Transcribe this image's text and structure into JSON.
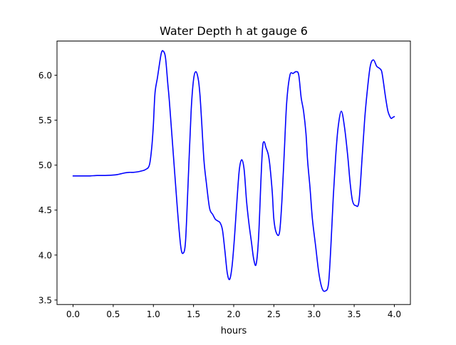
{
  "chart_data": {
    "type": "line",
    "title": "Water Depth h at gauge 6",
    "xlabel": "hours",
    "ylabel": "",
    "xlim": [
      -0.2,
      4.2
    ],
    "ylim": [
      3.45,
      6.38
    ],
    "grid": false,
    "x_ticks": [
      0.0,
      0.5,
      1.0,
      1.5,
      2.0,
      2.5,
      3.0,
      3.5,
      4.0
    ],
    "x_tick_labels": [
      "0.0",
      "0.5",
      "1.0",
      "1.5",
      "2.0",
      "2.5",
      "3.0",
      "3.5",
      "4.0"
    ],
    "y_ticks": [
      3.5,
      4.0,
      4.5,
      5.0,
      5.5,
      6.0
    ],
    "y_tick_labels": [
      "3.5",
      "4.0",
      "4.5",
      "5.0",
      "5.5",
      "6.0"
    ],
    "series": [
      {
        "color": "#0000ff",
        "x": [
          0.0,
          0.1,
          0.2,
          0.3,
          0.4,
          0.5,
          0.55,
          0.6,
          0.65,
          0.7,
          0.75,
          0.8,
          0.85,
          0.9,
          0.95,
          0.98,
          1.0,
          1.02,
          1.05,
          1.08,
          1.1,
          1.12,
          1.15,
          1.18,
          1.2,
          1.25,
          1.3,
          1.34,
          1.37,
          1.4,
          1.43,
          1.47,
          1.5,
          1.53,
          1.56,
          1.58,
          1.6,
          1.63,
          1.66,
          1.7,
          1.74,
          1.77,
          1.8,
          1.83,
          1.86,
          1.89,
          1.92,
          1.95,
          1.98,
          2.01,
          2.04,
          2.07,
          2.1,
          2.13,
          2.16,
          2.19,
          2.22,
          2.25,
          2.28,
          2.31,
          2.34,
          2.36,
          2.38,
          2.4,
          2.43,
          2.45,
          2.48,
          2.5,
          2.53,
          2.57,
          2.6,
          2.63,
          2.66,
          2.7,
          2.74,
          2.78,
          2.81,
          2.84,
          2.87,
          2.9,
          2.92,
          2.95,
          2.98,
          3.02,
          3.06,
          3.1,
          3.14,
          3.18,
          3.21,
          3.24,
          3.27,
          3.3,
          3.34,
          3.38,
          3.42,
          3.45,
          3.48,
          3.52,
          3.56,
          3.6,
          3.63,
          3.66,
          3.7,
          3.74,
          3.78,
          3.81,
          3.84,
          3.86,
          3.88,
          3.9,
          3.92,
          3.94,
          3.96,
          3.98,
          4.0
        ],
        "y": [
          4.88,
          4.88,
          4.88,
          4.885,
          4.885,
          4.89,
          4.895,
          4.905,
          4.915,
          4.92,
          4.92,
          4.925,
          4.935,
          4.95,
          5.0,
          5.2,
          5.45,
          5.8,
          5.97,
          6.15,
          6.25,
          6.27,
          6.2,
          5.9,
          5.7,
          5.1,
          4.5,
          4.1,
          4.02,
          4.15,
          4.75,
          5.6,
          5.95,
          6.04,
          5.95,
          5.78,
          5.5,
          5.05,
          4.8,
          4.52,
          4.45,
          4.4,
          4.38,
          4.36,
          4.28,
          4.05,
          3.8,
          3.73,
          3.88,
          4.2,
          4.6,
          4.95,
          5.06,
          4.95,
          4.6,
          4.35,
          4.15,
          3.95,
          3.9,
          4.2,
          4.85,
          5.2,
          5.26,
          5.2,
          5.12,
          5.0,
          4.7,
          4.4,
          4.25,
          4.25,
          4.6,
          5.15,
          5.7,
          6.0,
          6.02,
          6.04,
          6.0,
          5.75,
          5.6,
          5.35,
          5.05,
          4.75,
          4.4,
          4.1,
          3.8,
          3.63,
          3.6,
          3.68,
          4.1,
          4.65,
          5.1,
          5.42,
          5.6,
          5.42,
          5.1,
          4.8,
          4.6,
          4.55,
          4.6,
          5.1,
          5.5,
          5.8,
          6.1,
          6.17,
          6.1,
          6.08,
          6.05,
          5.95,
          5.82,
          5.7,
          5.6,
          5.55,
          5.52,
          5.53,
          5.54
        ]
      }
    ]
  }
}
